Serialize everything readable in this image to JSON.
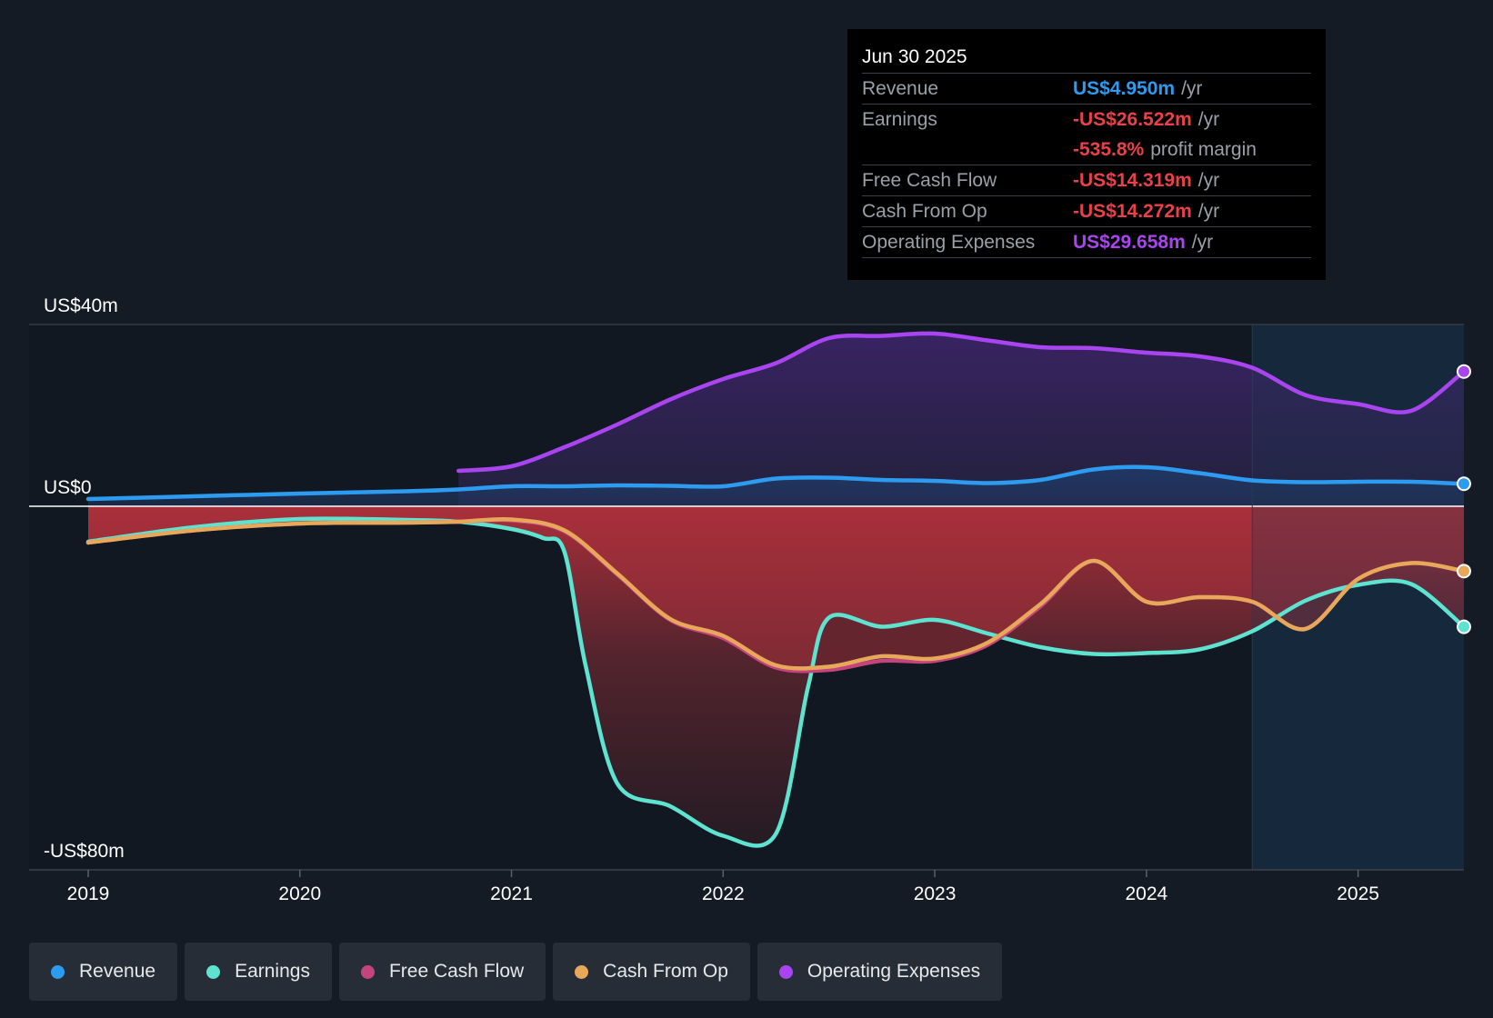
{
  "tooltip": {
    "date": "Jun 30 2025",
    "revenue": {
      "label": "Revenue",
      "value": "US$4.950m",
      "suffix": "/yr"
    },
    "earnings": {
      "label": "Earnings",
      "value": "-US$26.522m",
      "suffix": "/yr"
    },
    "margin": {
      "value": "-535.8%",
      "suffix": "profit margin"
    },
    "fcf": {
      "label": "Free Cash Flow",
      "value": "-US$14.319m",
      "suffix": "/yr"
    },
    "cfo": {
      "label": "Cash From Op",
      "value": "-US$14.272m",
      "suffix": "/yr"
    },
    "opex": {
      "label": "Operating Expenses",
      "value": "US$29.658m",
      "suffix": "/yr"
    }
  },
  "legend": {
    "revenue": "Revenue",
    "earnings": "Earnings",
    "fcf": "Free Cash Flow",
    "cfo": "Cash From Op",
    "opex": "Operating Expenses"
  },
  "colors": {
    "revenue": "#2d9cf0",
    "earnings": "#5ee3d1",
    "fcf": "#c4457d",
    "cfo": "#e8a85a",
    "opex": "#a945f0",
    "negative": "#e8414a"
  },
  "chart_data": {
    "type": "line",
    "title": "",
    "y_tick_labels": [
      {
        "value": 40,
        "label": "US$40m"
      },
      {
        "value": 0,
        "label": "US$0"
      },
      {
        "value": -80,
        "label": "-US$80m"
      }
    ],
    "ylim": [
      -80,
      40
    ],
    "xlim": [
      2019,
      2025.5
    ],
    "x_ticks": [
      2019,
      2020,
      2021,
      2022,
      2023,
      2024,
      2025
    ],
    "forecast_start": 2024.5,
    "series": [
      {
        "name": "Revenue",
        "key": "revenue",
        "x": [
          2019,
          2019.5,
          2020,
          2020.5,
          2020.75,
          2021,
          2021.25,
          2021.5,
          2021.75,
          2022,
          2022.25,
          2022.5,
          2022.75,
          2023,
          2023.25,
          2023.5,
          2023.75,
          2024,
          2024.25,
          2024.5,
          2024.75,
          2025,
          2025.25,
          2025.5
        ],
        "y": [
          1.6,
          2.2,
          2.8,
          3.3,
          3.7,
          4.4,
          4.4,
          4.6,
          4.5,
          4.4,
          6.1,
          6.3,
          5.8,
          5.6,
          5.1,
          5.8,
          8.1,
          8.6,
          7.3,
          5.7,
          5.3,
          5.4,
          5.4,
          4.95
        ]
      },
      {
        "name": "Earnings",
        "key": "earnings",
        "x": [
          2019,
          2019.5,
          2020,
          2020.5,
          2020.75,
          2021,
          2021.15,
          2021.25,
          2021.35,
          2021.5,
          2021.75,
          2022,
          2022.25,
          2022.4,
          2022.5,
          2022.75,
          2023,
          2023.25,
          2023.5,
          2023.75,
          2024,
          2024.25,
          2024.5,
          2024.75,
          2025,
          2025.25,
          2025.5
        ],
        "y": [
          -7.8,
          -4.6,
          -2.8,
          -3.0,
          -3.4,
          -5.0,
          -7.0,
          -10.0,
          -35.0,
          -61.0,
          -66.0,
          -72.5,
          -72.0,
          -40.0,
          -24.5,
          -26.5,
          -25.0,
          -28.0,
          -31.0,
          -32.5,
          -32.3,
          -31.5,
          -27.5,
          -20.8,
          -17.3,
          -17.1,
          -26.52
        ]
      },
      {
        "name": "Free Cash Flow",
        "key": "fcf",
        "x": [
          2019,
          2019.5,
          2020,
          2020.5,
          2020.75,
          2021,
          2021.25,
          2021.5,
          2021.75,
          2022,
          2022.25,
          2022.5,
          2022.75,
          2023,
          2023.25,
          2023.5,
          2023.75,
          2024,
          2024.25,
          2024.5,
          2024.75,
          2025,
          2025.25,
          2025.5
        ],
        "y": [
          -8.0,
          -5.3,
          -3.8,
          -3.6,
          -3.4,
          -3.1,
          -5.5,
          -15.0,
          -25.0,
          -29.0,
          -35.5,
          -36.0,
          -34.0,
          -34.0,
          -30.5,
          -22.0,
          -12.0,
          -21.0,
          -20.0,
          -21.0,
          -27.0,
          -16.0,
          -12.5,
          -14.32
        ]
      },
      {
        "name": "Cash From Op",
        "key": "cfo",
        "x": [
          2019,
          2019.5,
          2020,
          2020.5,
          2020.75,
          2021,
          2021.25,
          2021.5,
          2021.75,
          2022,
          2022.25,
          2022.5,
          2022.75,
          2023,
          2023.25,
          2023.5,
          2023.75,
          2024,
          2024.25,
          2024.5,
          2024.75,
          2025,
          2025.25,
          2025.5
        ],
        "y": [
          -8.0,
          -5.3,
          -3.8,
          -3.6,
          -3.4,
          -2.9,
          -5.3,
          -14.8,
          -24.8,
          -28.5,
          -35.0,
          -35.3,
          -33.0,
          -33.5,
          -30.0,
          -21.5,
          -12.0,
          -21.0,
          -20.0,
          -21.0,
          -27.0,
          -16.0,
          -12.5,
          -14.27
        ]
      },
      {
        "name": "Operating Expenses",
        "key": "opex",
        "x": [
          2020.75,
          2021,
          2021.25,
          2021.5,
          2021.75,
          2022,
          2022.25,
          2022.5,
          2022.75,
          2023,
          2023.25,
          2023.5,
          2023.75,
          2024,
          2024.25,
          2024.5,
          2024.75,
          2025,
          2025.25,
          2025.5
        ],
        "y": [
          7.8,
          8.8,
          13.0,
          18.0,
          23.5,
          28.0,
          31.5,
          37.0,
          37.5,
          38.0,
          36.5,
          35.0,
          34.8,
          33.8,
          33.0,
          30.5,
          24.5,
          22.5,
          21.0,
          29.66
        ]
      }
    ]
  }
}
